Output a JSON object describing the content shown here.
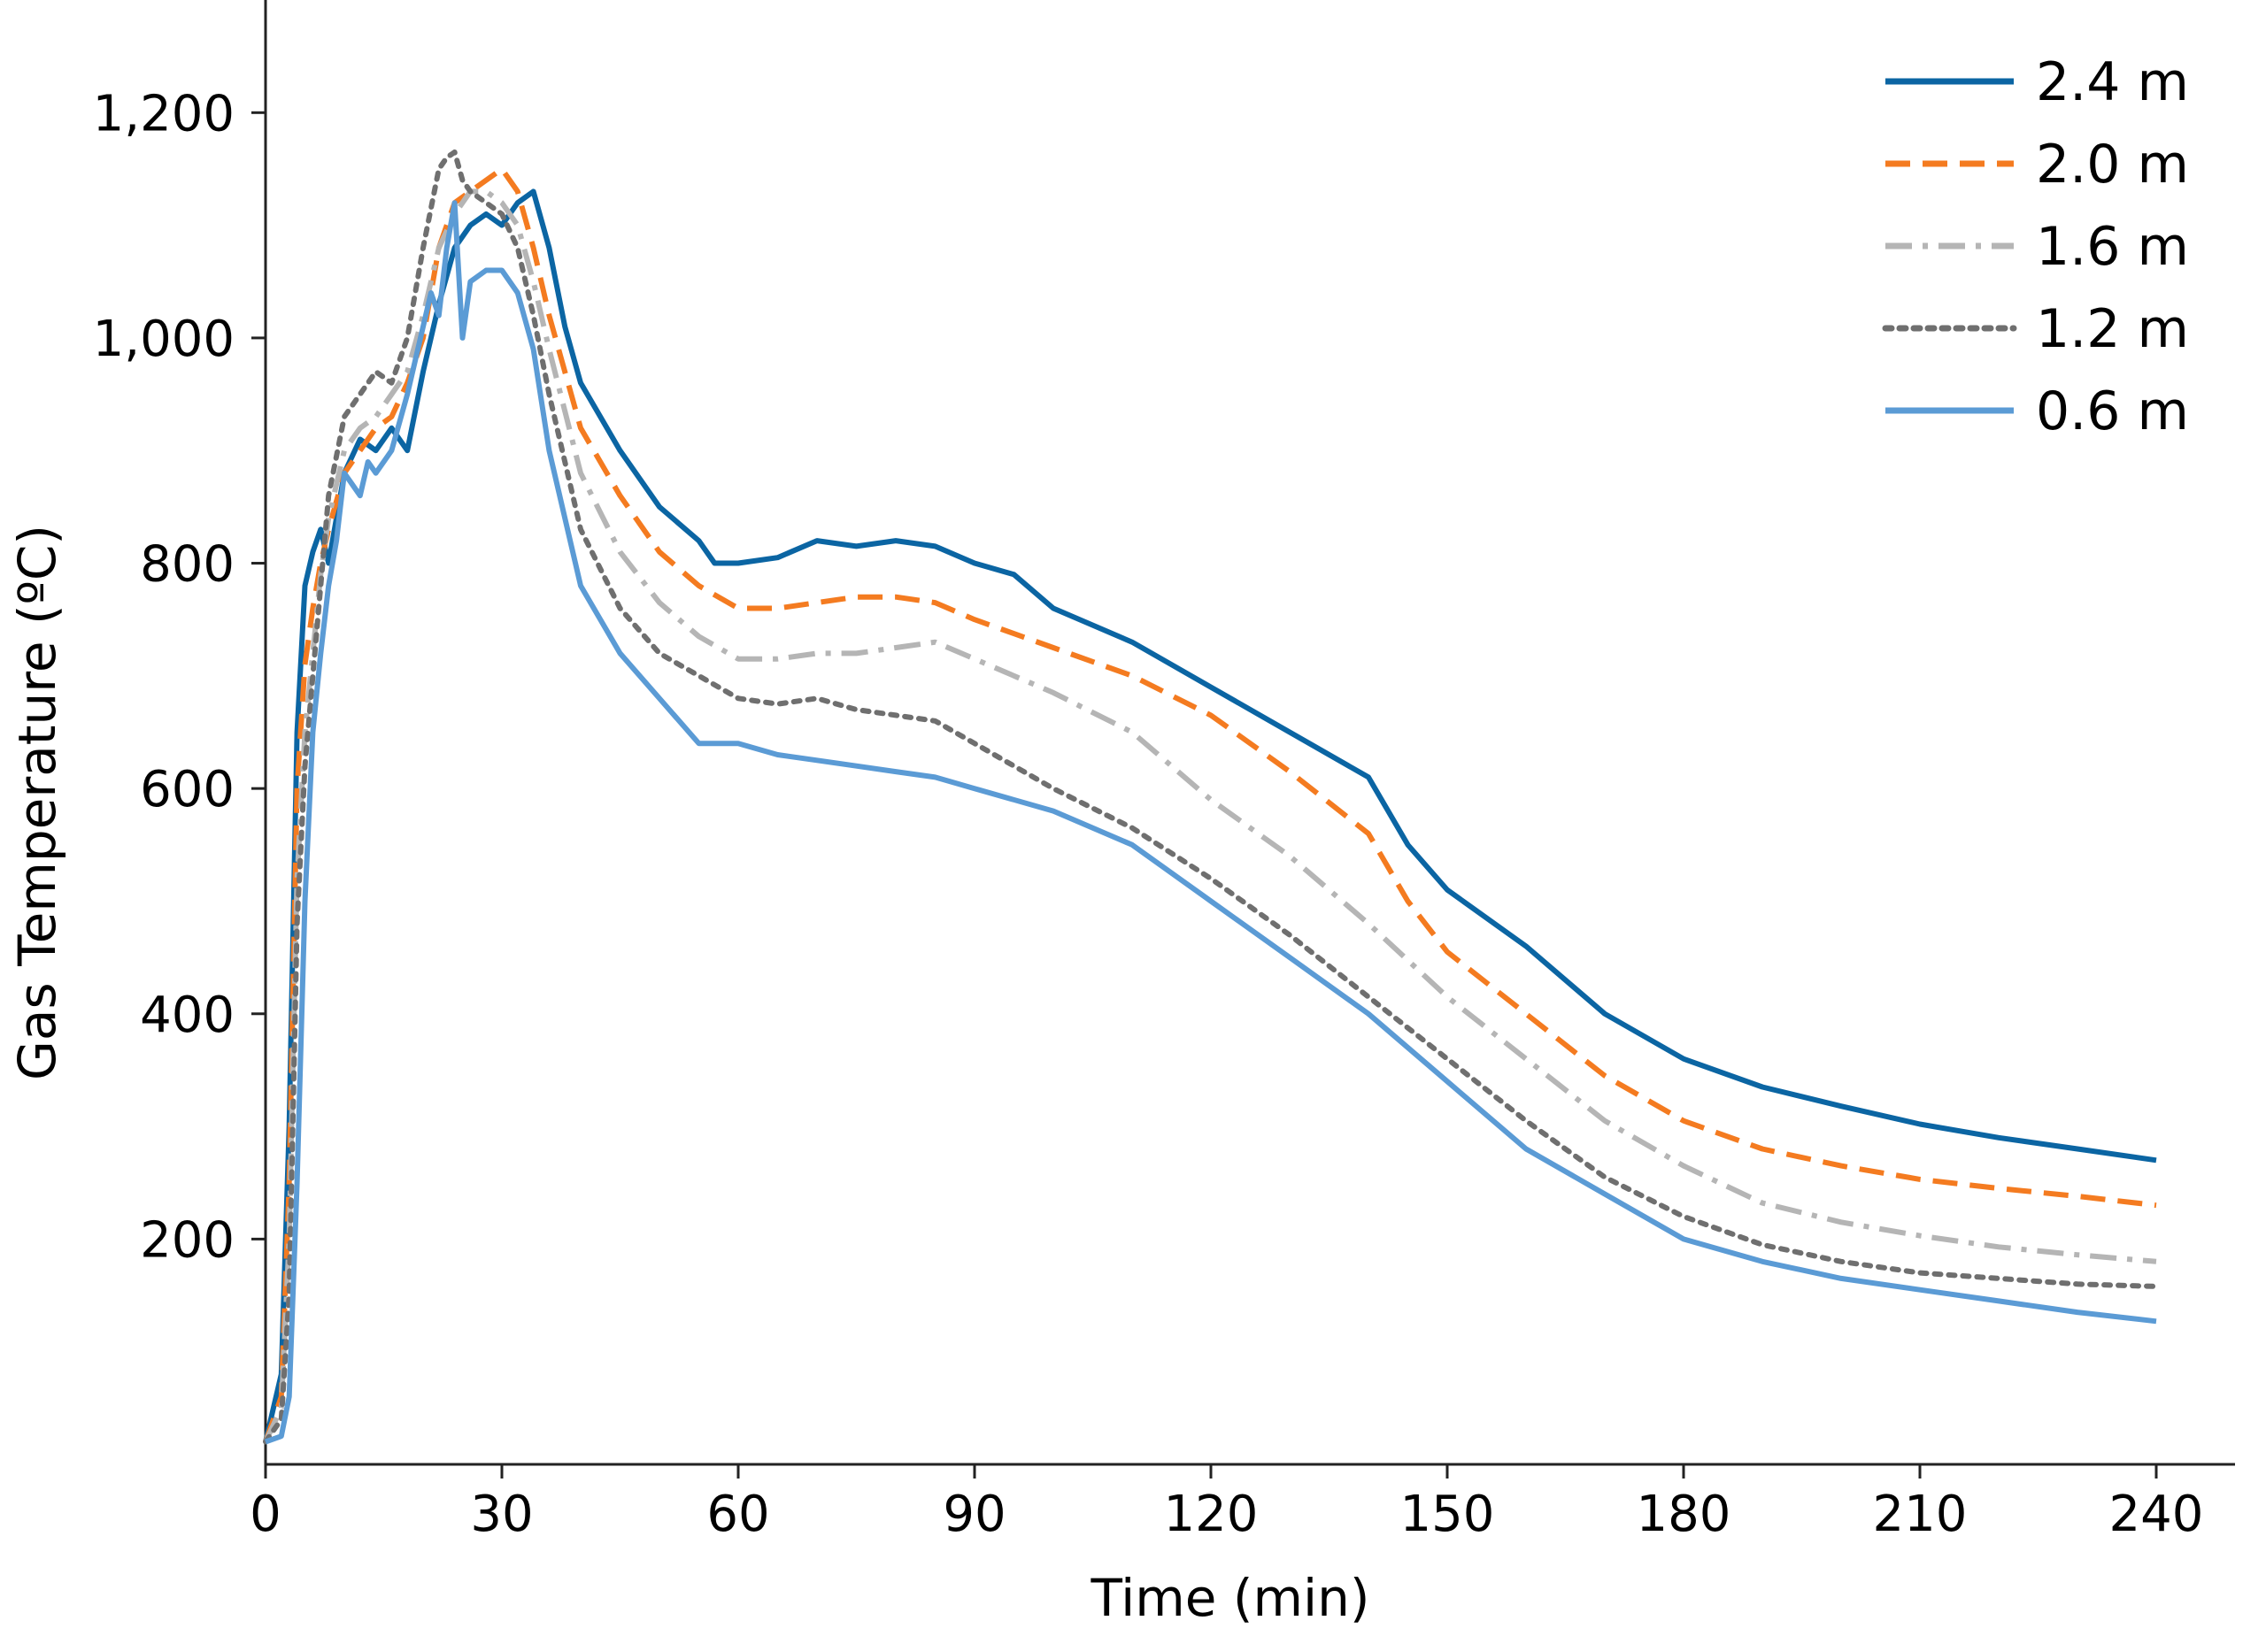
{
  "chart_data": {
    "type": "line",
    "title": "",
    "xlabel": "Time (min)",
    "ylabel": "Gas Temperature (ºC)",
    "xlim": [
      0,
      250
    ],
    "ylim": [
      0,
      1300
    ],
    "xticks": [
      0,
      30,
      60,
      90,
      120,
      150,
      180,
      210,
      240
    ],
    "xtick_labels": [
      "0",
      "30",
      "60",
      "90",
      "120",
      "150",
      "180",
      "210",
      "240"
    ],
    "yticks": [
      200,
      400,
      600,
      800,
      1000,
      1200
    ],
    "ytick_labels": [
      "200",
      "400",
      "600",
      "800",
      "1,000",
      "1,200"
    ],
    "grid": false,
    "legend_position": "top-right",
    "series": [
      {
        "name": "2.4 m",
        "color": "#0b65a3",
        "style": "solid",
        "x": [
          0,
          2,
          3,
          4,
          5,
          6,
          7,
          8,
          10,
          12,
          14,
          16,
          18,
          20,
          22,
          24,
          26,
          28,
          30,
          32,
          34,
          36,
          38,
          40,
          45,
          50,
          55,
          57,
          60,
          65,
          70,
          75,
          80,
          85,
          90,
          95,
          100,
          110,
          120,
          130,
          140,
          145,
          150,
          160,
          170,
          180,
          190,
          200,
          210,
          220,
          230,
          240
        ],
        "y": [
          20,
          80,
          300,
          650,
          780,
          810,
          830,
          800,
          880,
          910,
          900,
          920,
          900,
          970,
          1030,
          1080,
          1100,
          1110,
          1100,
          1120,
          1130,
          1080,
          1010,
          960,
          900,
          850,
          820,
          800,
          800,
          805,
          820,
          815,
          820,
          815,
          800,
          790,
          760,
          730,
          690,
          650,
          610,
          550,
          510,
          460,
          400,
          360,
          335,
          318,
          302,
          290,
          280,
          270
        ]
      },
      {
        "name": "2.0 m",
        "color": "#f47b20",
        "style": "dashed",
        "x": [
          0,
          2,
          3,
          4,
          5,
          6,
          7,
          8,
          10,
          12,
          14,
          16,
          18,
          20,
          22,
          24,
          26,
          28,
          30,
          32,
          34,
          36,
          40,
          45,
          50,
          55,
          60,
          65,
          70,
          75,
          80,
          85,
          90,
          100,
          110,
          120,
          130,
          140,
          145,
          150,
          160,
          170,
          180,
          190,
          200,
          210,
          220,
          230,
          240
        ],
        "y": [
          20,
          60,
          250,
          600,
          710,
          760,
          800,
          830,
          880,
          900,
          920,
          930,
          960,
          1000,
          1080,
          1120,
          1130,
          1140,
          1150,
          1130,
          1080,
          1020,
          920,
          860,
          810,
          780,
          760,
          760,
          765,
          770,
          770,
          765,
          750,
          725,
          700,
          665,
          615,
          560,
          500,
          455,
          400,
          345,
          305,
          280,
          265,
          253,
          245,
          238,
          230
        ]
      },
      {
        "name": "1.6 m",
        "color": "#b5b5b5",
        "style": "dashdot",
        "x": [
          0,
          2,
          3,
          4,
          5,
          6,
          7,
          8,
          10,
          12,
          14,
          16,
          18,
          20,
          22,
          24,
          26,
          28,
          30,
          32,
          34,
          36,
          40,
          45,
          50,
          55,
          60,
          65,
          70,
          75,
          80,
          85,
          90,
          100,
          110,
          120,
          130,
          140,
          150,
          160,
          170,
          180,
          190,
          200,
          210,
          220,
          230,
          240
        ],
        "y": [
          20,
          50,
          200,
          520,
          650,
          720,
          790,
          840,
          900,
          920,
          930,
          950,
          970,
          1020,
          1080,
          1110,
          1130,
          1130,
          1120,
          1100,
          1050,
          990,
          880,
          810,
          765,
          735,
          715,
          715,
          720,
          720,
          725,
          730,
          715,
          685,
          650,
          590,
          540,
          480,
          415,
          360,
          305,
          265,
          232,
          215,
          203,
          193,
          186,
          180
        ]
      },
      {
        "name": "1.2 m",
        "color": "#6f6f6f",
        "style": "dotted",
        "x": [
          0,
          2,
          3,
          4,
          5,
          6,
          7,
          8,
          10,
          12,
          14,
          16,
          18,
          20,
          22,
          23,
          24,
          25,
          26,
          28,
          30,
          32,
          34,
          36,
          40,
          45,
          50,
          55,
          60,
          65,
          70,
          75,
          80,
          85,
          90,
          100,
          110,
          120,
          130,
          140,
          150,
          160,
          170,
          180,
          190,
          200,
          210,
          220,
          230,
          240
        ],
        "y": [
          20,
          40,
          150,
          480,
          620,
          700,
          780,
          860,
          930,
          950,
          970,
          960,
          1000,
          1080,
          1150,
          1160,
          1165,
          1140,
          1130,
          1120,
          1110,
          1080,
          1020,
          950,
          830,
          760,
          720,
          700,
          680,
          675,
          680,
          670,
          665,
          660,
          640,
          600,
          565,
          520,
          470,
          415,
          360,
          305,
          255,
          220,
          195,
          180,
          170,
          165,
          160,
          158
        ]
      },
      {
        "name": "0.6 m",
        "color": "#5b9bd5",
        "style": "solid",
        "x": [
          0,
          2,
          3,
          4,
          5,
          6,
          7,
          8,
          9,
          10,
          11,
          12,
          13,
          14,
          16,
          18,
          20,
          21,
          22,
          23,
          24,
          25,
          26,
          28,
          30,
          32,
          34,
          36,
          40,
          45,
          50,
          55,
          60,
          65,
          70,
          75,
          80,
          85,
          90,
          100,
          110,
          120,
          130,
          140,
          150,
          160,
          170,
          180,
          190,
          200,
          210,
          220,
          230,
          240
        ],
        "y": [
          20,
          25,
          60,
          250,
          500,
          650,
          720,
          780,
          820,
          880,
          870,
          860,
          890,
          880,
          900,
          950,
          1010,
          1040,
          1020,
          1080,
          1120,
          1000,
          1050,
          1060,
          1060,
          1040,
          990,
          900,
          780,
          720,
          680,
          640,
          640,
          630,
          625,
          620,
          615,
          610,
          600,
          580,
          550,
          500,
          450,
          400,
          340,
          280,
          240,
          200,
          180,
          165,
          155,
          145,
          135,
          127
        ]
      }
    ]
  }
}
